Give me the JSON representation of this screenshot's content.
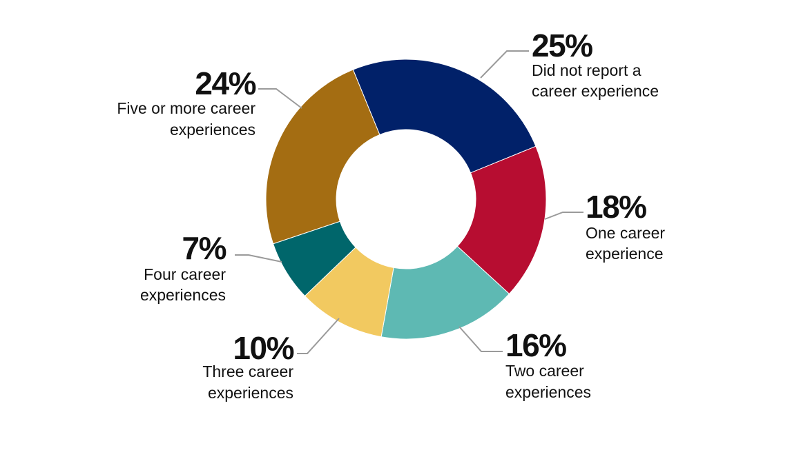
{
  "chart_data": {
    "type": "pie",
    "donut": true,
    "title": "",
    "unit": "%",
    "slices": [
      {
        "value": 25,
        "value_label": "25%",
        "label_lines": [
          "Did not report a",
          "career experience"
        ],
        "color": "#012169"
      },
      {
        "value": 18,
        "value_label": "18%",
        "label_lines": [
          "One career",
          "experience"
        ],
        "color": "#B70D31"
      },
      {
        "value": 16,
        "value_label": "16%",
        "label_lines": [
          "Two career",
          "experiences"
        ],
        "color": "#5EB9B3"
      },
      {
        "value": 10,
        "value_label": "10%",
        "label_lines": [
          "Three career",
          "experiences"
        ],
        "color": "#F2C960"
      },
      {
        "value": 7,
        "value_label": "7%",
        "label_lines": [
          "Four career",
          "experiences"
        ],
        "color": "#00666B"
      },
      {
        "value": 24,
        "value_label": "24%",
        "label_lines": [
          "Five or more career",
          "experiences"
        ],
        "color": "#A46D12"
      }
    ]
  }
}
